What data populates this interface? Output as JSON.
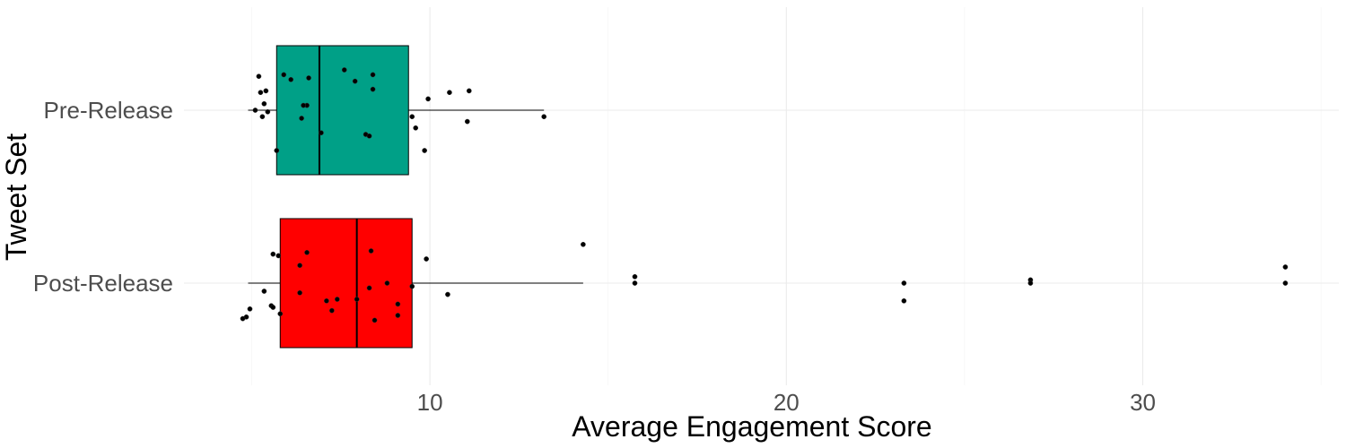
{
  "chart_data": {
    "type": "boxplot",
    "orientation": "horizontal",
    "xlabel": "Average Engagement Score",
    "ylabel": "Tweet Set",
    "xlim": [
      3.1,
      35.5
    ],
    "x_ticks": [
      10,
      20,
      30
    ],
    "x_tick_labels": [
      "10",
      "20",
      "30"
    ],
    "grid": true,
    "legend": "none",
    "categories": [
      "Pre-Release",
      "Post-Release"
    ],
    "groups": [
      {
        "category": "Pre-Release",
        "color": "#00A087",
        "box": {
          "whisker_low": 4.9,
          "q1": 5.7,
          "median": 6.9,
          "q3": 9.4,
          "whisker_high": 13.2
        },
        "points": [
          {
            "x": 5.2,
            "jitter": -0.21
          },
          {
            "x": 5.9,
            "jitter": -0.22
          },
          {
            "x": 6.1,
            "jitter": -0.19
          },
          {
            "x": 6.6,
            "jitter": -0.2
          },
          {
            "x": 5.4,
            "jitter": -0.12
          },
          {
            "x": 5.35,
            "jitter": -0.04
          },
          {
            "x": 5.1,
            "jitter": 0.0
          },
          {
            "x": 5.3,
            "jitter": 0.04
          },
          {
            "x": 5.45,
            "jitter": 0.01
          },
          {
            "x": 5.25,
            "jitter": -0.11
          },
          {
            "x": 6.55,
            "jitter": -0.03
          },
          {
            "x": 6.45,
            "jitter": -0.03
          },
          {
            "x": 6.4,
            "jitter": 0.05
          },
          {
            "x": 6.95,
            "jitter": 0.14
          },
          {
            "x": 7.6,
            "jitter": -0.25
          },
          {
            "x": 7.9,
            "jitter": -0.18
          },
          {
            "x": 8.4,
            "jitter": -0.22
          },
          {
            "x": 8.4,
            "jitter": -0.13
          },
          {
            "x": 8.2,
            "jitter": 0.15
          },
          {
            "x": 8.3,
            "jitter": 0.16
          },
          {
            "x": 5.7,
            "jitter": 0.25
          },
          {
            "x": 9.5,
            "jitter": 0.04
          },
          {
            "x": 9.6,
            "jitter": 0.11
          },
          {
            "x": 9.85,
            "jitter": 0.25
          },
          {
            "x": 9.95,
            "jitter": -0.07
          },
          {
            "x": 10.55,
            "jitter": -0.11
          },
          {
            "x": 11.1,
            "jitter": -0.12
          },
          {
            "x": 11.05,
            "jitter": 0.07
          },
          {
            "x": 13.2,
            "jitter": 0.04
          }
        ]
      },
      {
        "category": "Post-Release",
        "color": "#FF0000",
        "box": {
          "whisker_low": 4.9,
          "q1": 5.8,
          "median": 7.95,
          "q3": 9.5,
          "whisker_high": 14.3
        },
        "points": [
          {
            "x": 4.85,
            "jitter": 0.21
          },
          {
            "x": 4.75,
            "jitter": 0.22
          },
          {
            "x": 4.95,
            "jitter": 0.16
          },
          {
            "x": 5.35,
            "jitter": 0.05
          },
          {
            "x": 5.55,
            "jitter": 0.14
          },
          {
            "x": 5.6,
            "jitter": 0.15
          },
          {
            "x": 5.8,
            "jitter": 0.19
          },
          {
            "x": 5.75,
            "jitter": -0.17
          },
          {
            "x": 5.6,
            "jitter": -0.18
          },
          {
            "x": 6.35,
            "jitter": -0.11
          },
          {
            "x": 6.55,
            "jitter": -0.19
          },
          {
            "x": 6.35,
            "jitter": 0.06
          },
          {
            "x": 7.1,
            "jitter": 0.11
          },
          {
            "x": 7.25,
            "jitter": 0.17
          },
          {
            "x": 7.4,
            "jitter": 0.1
          },
          {
            "x": 7.95,
            "jitter": 0.1
          },
          {
            "x": 8.3,
            "jitter": 0.03
          },
          {
            "x": 8.35,
            "jitter": -0.2
          },
          {
            "x": 8.45,
            "jitter": 0.23
          },
          {
            "x": 8.8,
            "jitter": 0.0
          },
          {
            "x": 9.1,
            "jitter": 0.13
          },
          {
            "x": 9.1,
            "jitter": 0.2
          },
          {
            "x": 9.5,
            "jitter": 0.02
          },
          {
            "x": 9.9,
            "jitter": -0.15
          },
          {
            "x": 10.5,
            "jitter": 0.07
          },
          {
            "x": 14.3,
            "jitter": -0.24
          },
          {
            "x": 15.75,
            "jitter": -0.04
          },
          {
            "x": 15.75,
            "jitter": 0.0
          },
          {
            "x": 23.3,
            "jitter": 0.0
          },
          {
            "x": 23.3,
            "jitter": 0.11
          },
          {
            "x": 26.85,
            "jitter": -0.02
          },
          {
            "x": 26.85,
            "jitter": 0.0
          },
          {
            "x": 34.0,
            "jitter": -0.1
          },
          {
            "x": 34.0,
            "jitter": 0.0
          }
        ]
      }
    ]
  }
}
